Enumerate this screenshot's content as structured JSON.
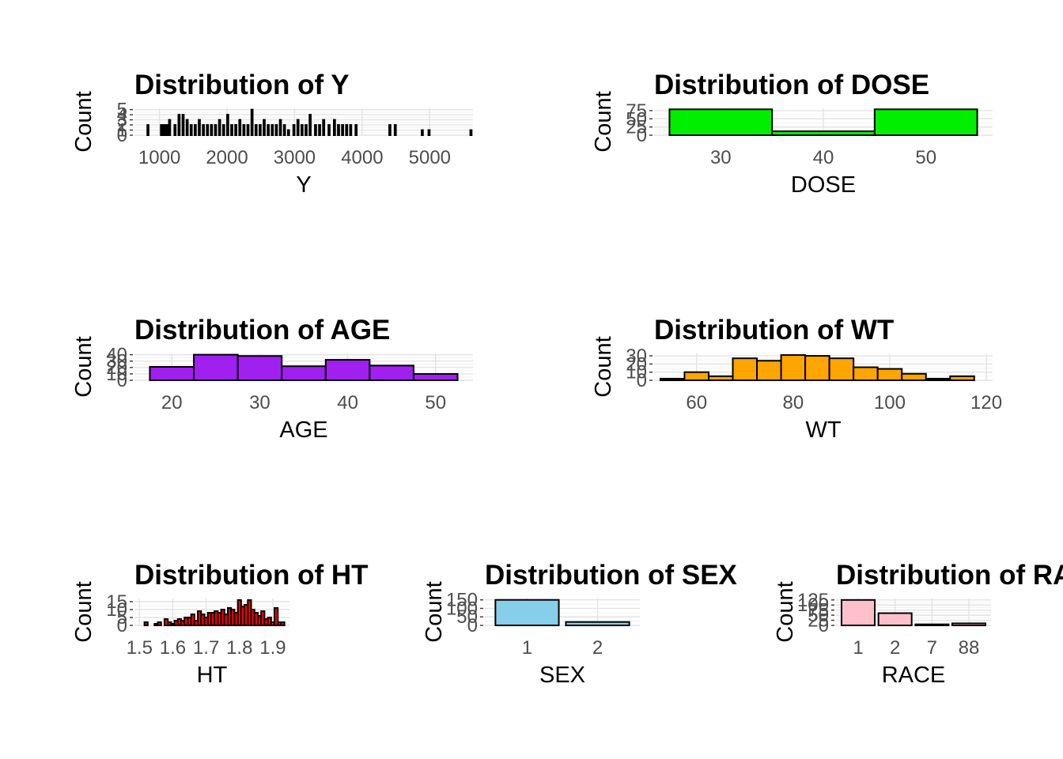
{
  "chart_data": [
    {
      "id": "y",
      "type": "bar",
      "title": "Distribution of Y",
      "xlabel": "Y",
      "ylabel": "Count",
      "fill": "#000000",
      "xlim": [
        630,
        5640
      ],
      "ylim": [
        0,
        5.25
      ],
      "xticks": [
        "1000",
        "2000",
        "3000",
        "4000",
        "5000"
      ],
      "xtick_values": [
        1000,
        2000,
        3000,
        4000,
        5000
      ],
      "yticks": [
        "0",
        "1",
        "2",
        "3",
        "4",
        "5"
      ],
      "ytick_values": [
        0,
        1,
        2,
        3,
        4,
        5
      ],
      "bin_width": 20,
      "bins": [
        [
          830,
          2
        ],
        [
          1030,
          2
        ],
        [
          1070,
          2
        ],
        [
          1110,
          2
        ],
        [
          1150,
          3
        ],
        [
          1230,
          2
        ],
        [
          1290,
          4
        ],
        [
          1350,
          4
        ],
        [
          1410,
          3
        ],
        [
          1470,
          2
        ],
        [
          1530,
          2
        ],
        [
          1590,
          3
        ],
        [
          1650,
          2
        ],
        [
          1710,
          2
        ],
        [
          1770,
          2
        ],
        [
          1830,
          2
        ],
        [
          1890,
          3
        ],
        [
          1950,
          2
        ],
        [
          2010,
          4
        ],
        [
          2070,
          2
        ],
        [
          2130,
          2
        ],
        [
          2190,
          3
        ],
        [
          2250,
          2
        ],
        [
          2310,
          2
        ],
        [
          2370,
          5
        ],
        [
          2430,
          2
        ],
        [
          2490,
          2
        ],
        [
          2550,
          3
        ],
        [
          2610,
          2
        ],
        [
          2670,
          2
        ],
        [
          2730,
          2
        ],
        [
          2790,
          3
        ],
        [
          2850,
          2
        ],
        [
          2910,
          1
        ],
        [
          2990,
          2
        ],
        [
          3050,
          3
        ],
        [
          3110,
          2
        ],
        [
          3170,
          2
        ],
        [
          3230,
          4
        ],
        [
          3310,
          2
        ],
        [
          3370,
          2
        ],
        [
          3430,
          3
        ],
        [
          3510,
          2
        ],
        [
          3590,
          3
        ],
        [
          3650,
          2
        ],
        [
          3710,
          2
        ],
        [
          3770,
          2
        ],
        [
          3830,
          2
        ],
        [
          3910,
          2
        ],
        [
          4410,
          2
        ],
        [
          4490,
          2
        ],
        [
          4890,
          1
        ],
        [
          4990,
          1
        ],
        [
          5610,
          1
        ]
      ]
    },
    {
      "id": "dose",
      "type": "bar",
      "title": "Distribution of DOSE",
      "xlabel": "DOSE",
      "ylabel": "Count",
      "fill": "#00ee00",
      "xlim": [
        23.5,
        56.5
      ],
      "ylim": [
        0,
        82
      ],
      "xticks": [
        "30",
        "40",
        "50"
      ],
      "xtick_values": [
        30,
        40,
        50
      ],
      "yticks": [
        "0",
        "25",
        "50",
        "75"
      ],
      "ytick_values": [
        0,
        25,
        50,
        75
      ],
      "bin_width": 10,
      "bins": [
        [
          30,
          79
        ],
        [
          40,
          12
        ],
        [
          50,
          79
        ]
      ]
    },
    {
      "id": "age",
      "type": "bar",
      "title": "Distribution of AGE",
      "xlabel": "AGE",
      "ylabel": "Count",
      "fill": "#a020f0",
      "xlim": [
        15.75,
        54.25
      ],
      "ylim": [
        0,
        42
      ],
      "xticks": [
        "20",
        "30",
        "40",
        "50"
      ],
      "xtick_values": [
        20,
        30,
        40,
        50
      ],
      "yticks": [
        "0",
        "10",
        "20",
        "30",
        "40"
      ],
      "ytick_values": [
        0,
        10,
        20,
        30,
        40
      ],
      "bin_width": 5,
      "bins": [
        [
          20,
          21
        ],
        [
          25,
          40
        ],
        [
          30,
          38
        ],
        [
          35,
          22
        ],
        [
          40,
          32
        ],
        [
          45,
          23
        ],
        [
          50,
          10
        ]
      ]
    },
    {
      "id": "wt",
      "type": "bar",
      "title": "Distribution of WT",
      "xlabel": "WT",
      "ylabel": "Count",
      "fill": "#ffa500",
      "xlim": [
        51.2,
        121.3
      ],
      "ylim": [
        0,
        33
      ],
      "xticks": [
        "60",
        "80",
        "100",
        "120"
      ],
      "xtick_values": [
        60,
        80,
        100,
        120
      ],
      "yticks": [
        "0",
        "10",
        "20",
        "30"
      ],
      "ytick_values": [
        0,
        10,
        20,
        30
      ],
      "bin_width": 5,
      "bins": [
        [
          55,
          2
        ],
        [
          60,
          10
        ],
        [
          65,
          5
        ],
        [
          70,
          27
        ],
        [
          75,
          24
        ],
        [
          80,
          31
        ],
        [
          85,
          30
        ],
        [
          90,
          27
        ],
        [
          95,
          16
        ],
        [
          100,
          14
        ],
        [
          105,
          8
        ],
        [
          110,
          2
        ],
        [
          115,
          5
        ]
      ]
    },
    {
      "id": "ht",
      "type": "bar",
      "title": "Distribution of HT",
      "xlabel": "HT",
      "ylabel": "Count",
      "fill": "#ff0000",
      "xlim": [
        1.485,
        1.95
      ],
      "ylim": [
        0,
        17
      ],
      "xticks": [
        "1.5",
        "1.6",
        "1.7",
        "1.8",
        "1.9"
      ],
      "xtick_values": [
        1.5,
        1.6,
        1.7,
        1.8,
        1.9
      ],
      "yticks": [
        "0",
        "5",
        "10",
        "15"
      ],
      "ytick_values": [
        0,
        5,
        10,
        15
      ],
      "bin_width": 0.01,
      "bins": [
        [
          1.52,
          2
        ],
        [
          1.55,
          1
        ],
        [
          1.56,
          2
        ],
        [
          1.58,
          4
        ],
        [
          1.59,
          2
        ],
        [
          1.6,
          1
        ],
        [
          1.61,
          3
        ],
        [
          1.62,
          4
        ],
        [
          1.63,
          3
        ],
        [
          1.64,
          5
        ],
        [
          1.65,
          5
        ],
        [
          1.66,
          7
        ],
        [
          1.67,
          3
        ],
        [
          1.68,
          9
        ],
        [
          1.69,
          7
        ],
        [
          1.7,
          5
        ],
        [
          1.71,
          8
        ],
        [
          1.72,
          8
        ],
        [
          1.73,
          9
        ],
        [
          1.74,
          8
        ],
        [
          1.75,
          10
        ],
        [
          1.76,
          7
        ],
        [
          1.77,
          11
        ],
        [
          1.78,
          10
        ],
        [
          1.79,
          8
        ],
        [
          1.8,
          16
        ],
        [
          1.81,
          12
        ],
        [
          1.82,
          13
        ],
        [
          1.83,
          16
        ],
        [
          1.84,
          10
        ],
        [
          1.85,
          8
        ],
        [
          1.86,
          6
        ],
        [
          1.87,
          9
        ],
        [
          1.88,
          4
        ],
        [
          1.89,
          5
        ],
        [
          1.9,
          2
        ],
        [
          1.91,
          11
        ],
        [
          1.92,
          2
        ],
        [
          1.93,
          2
        ]
      ]
    },
    {
      "id": "sex",
      "type": "bar",
      "title": "Distribution of SEX",
      "xlabel": "SEX",
      "ylabel": "Count",
      "fill": "#87ceeb",
      "xlim": [
        0.4,
        2.6
      ],
      "ylim": [
        0,
        158
      ],
      "categories": [
        "1",
        "2"
      ],
      "values": [
        150,
        20
      ],
      "yticks": [
        "0",
        "50",
        "100",
        "150"
      ],
      "ytick_values": [
        0,
        50,
        100,
        150
      ],
      "bar_width": 0.9
    },
    {
      "id": "race",
      "type": "bar",
      "title": "Distribution of RACE",
      "xlabel": "RACE",
      "ylabel": "Count",
      "fill": "#ffc0cb",
      "xlim": [
        0.4,
        4.6
      ],
      "ylim": [
        0,
        132
      ],
      "categories": [
        "1",
        "2",
        "7",
        "88"
      ],
      "values": [
        125,
        60,
        5,
        10
      ],
      "yticks": [
        "0",
        "25",
        "50",
        "75",
        "100",
        "125"
      ],
      "ytick_values": [
        0,
        25,
        50,
        75,
        100,
        125
      ],
      "bar_width": 0.9
    }
  ]
}
